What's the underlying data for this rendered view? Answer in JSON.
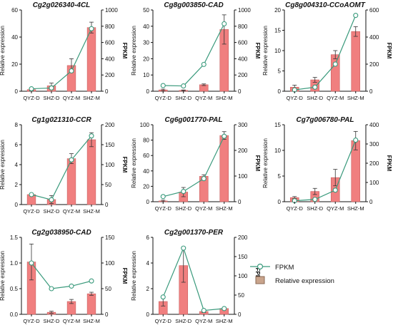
{
  "legend": {
    "line_label": "FPKM",
    "bar_label": "Relative expression",
    "line_color": "#3a9a7c",
    "bar_fill": "#f07f7f",
    "bar_stroke": "#c96060",
    "legend_bar_fill": "#c9a48c"
  },
  "chart_data": [
    {
      "type": "bar+line",
      "title": "Cg2g026340-4CL",
      "categories": [
        "QYZ-D",
        "SHZ-D",
        "QYZ-M",
        "SHZ-M"
      ],
      "ylabel": "Relative expression",
      "y2label": "FPKM",
      "ylim": [
        0,
        60
      ],
      "yticks": [
        0,
        20,
        40,
        60
      ],
      "y2lim": [
        0,
        1000
      ],
      "y2ticks": [
        0,
        200,
        400,
        600,
        800,
        1000
      ],
      "series": [
        {
          "name": "Relative expression",
          "kind": "bar",
          "values": [
            1.2,
            4.0,
            19.0,
            47.0
          ],
          "errors": [
            1.0,
            2.0,
            5.0,
            4.0
          ]
        },
        {
          "name": "FPKM",
          "kind": "line",
          "axis": "right",
          "values": [
            30,
            40,
            250,
            770
          ]
        }
      ]
    },
    {
      "type": "bar+line",
      "title": "Cg8g003850-CAD",
      "categories": [
        "QYZ-D",
        "SHZ-D",
        "QYZ-M",
        "SHZ-M"
      ],
      "ylabel": "Relative expression",
      "y2label": "FPKM",
      "ylim": [
        0,
        50
      ],
      "yticks": [
        0,
        10,
        20,
        30,
        40,
        50
      ],
      "y2lim": [
        0,
        1000
      ],
      "y2ticks": [
        0,
        200,
        400,
        600,
        800,
        1000
      ],
      "series": [
        {
          "name": "Relative expression",
          "kind": "bar",
          "values": [
            0.8,
            0.5,
            4.0,
            38.0
          ],
          "errors": [
            0.5,
            0.3,
            0.5,
            9.0
          ]
        },
        {
          "name": "FPKM",
          "kind": "line",
          "axis": "right",
          "values": [
            70,
            65,
            330,
            830
          ]
        }
      ]
    },
    {
      "type": "bar+line",
      "title": "Cg8g004310-CCoAOMT",
      "categories": [
        "QYZ-D",
        "SHZ-D",
        "QYZ-M",
        "SHZ-M"
      ],
      "ylabel": "Relative expression",
      "y2label": "FPKM",
      "ylim": [
        0,
        20
      ],
      "yticks": [
        0,
        5,
        10,
        15,
        20
      ],
      "y2lim": [
        0,
        600
      ],
      "y2ticks": [
        0,
        200,
        400,
        600
      ],
      "series": [
        {
          "name": "Relative expression",
          "kind": "bar",
          "values": [
            1.0,
            2.8,
            9.0,
            14.7
          ],
          "errors": [
            0.5,
            0.6,
            1.0,
            1.2
          ]
        },
        {
          "name": "FPKM",
          "kind": "line",
          "axis": "right",
          "values": [
            10,
            30,
            200,
            560
          ]
        }
      ]
    },
    {
      "type": "bar+line",
      "title": "Cg1g021310-CCR",
      "categories": [
        "QYZ-D",
        "SHZ-D",
        "QYZ-M",
        "SHZ-M"
      ],
      "ylabel": "Relative expression",
      "y2label": "FPKM",
      "ylim": [
        0,
        8
      ],
      "yticks": [
        0,
        2,
        4,
        6,
        8
      ],
      "y2lim": [
        0,
        200
      ],
      "y2ticks": [
        0,
        50,
        100,
        150,
        200
      ],
      "series": [
        {
          "name": "Relative expression",
          "kind": "bar",
          "values": [
            1.0,
            0.5,
            4.6,
            6.5
          ],
          "errors": [
            0.1,
            0.4,
            0.5,
            0.7
          ]
        },
        {
          "name": "FPKM",
          "kind": "line",
          "axis": "right",
          "values": [
            25,
            12,
            112,
            172
          ]
        }
      ]
    },
    {
      "type": "bar+line",
      "title": "Cg6g001770-PAL",
      "categories": [
        "QYZ-D",
        "SHZ-D",
        "QYZ-M",
        "SHZ-M"
      ],
      "ylabel": "Relative expression",
      "y2label": "FPKM",
      "ylim": [
        0,
        100
      ],
      "yticks": [
        0,
        20,
        40,
        60,
        80,
        100
      ],
      "y2lim": [
        0,
        300
      ],
      "y2ticks": [
        0,
        100,
        200,
        300
      ],
      "series": [
        {
          "name": "Relative expression",
          "kind": "bar",
          "values": [
            1.0,
            12.5,
            33.0,
            86.0
          ],
          "errors": [
            1.0,
            6.0,
            2.0,
            5.0
          ]
        },
        {
          "name": "FPKM",
          "kind": "line",
          "axis": "right",
          "values": [
            20,
            40,
            90,
            255
          ]
        }
      ]
    },
    {
      "type": "bar+line",
      "title": "Cg7g006780-PAL",
      "categories": [
        "QYZ-D",
        "SHZ-D",
        "QYZ-M",
        "SHZ-M"
      ],
      "ylabel": "Relative expression",
      "y2label": "FPKM",
      "ylim": [
        0,
        15
      ],
      "yticks": [
        0,
        5,
        10,
        15
      ],
      "y2lim": [
        0,
        400
      ],
      "y2ticks": [
        0,
        100,
        200,
        300,
        400
      ],
      "series": [
        {
          "name": "Relative expression",
          "kind": "bar",
          "values": [
            0.8,
            2.0,
            4.7,
            11.9
          ],
          "errors": [
            0.2,
            0.6,
            1.6,
            1.8
          ]
        },
        {
          "name": "FPKM",
          "kind": "line",
          "axis": "right",
          "values": [
            5,
            12,
            60,
            320
          ]
        }
      ]
    },
    {
      "type": "bar+line",
      "title": "Cg2g038950-CAD",
      "categories": [
        "QYZ-D",
        "SHZ-D",
        "QYZ-M",
        "SHZ-M"
      ],
      "ylabel": "Relative expression",
      "y2label": "FPKM",
      "ylim": [
        0,
        1.5
      ],
      "yticks": [
        0.0,
        0.5,
        1.0,
        1.5
      ],
      "ytick_labels": [
        "0.0",
        "0.5",
        "1.0",
        "1.5"
      ],
      "y2lim": [
        0,
        150
      ],
      "y2ticks": [
        0,
        50,
        100,
        150
      ],
      "series": [
        {
          "name": "Relative expression",
          "kind": "bar",
          "values": [
            1.02,
            0.04,
            0.25,
            0.4
          ],
          "errors": [
            0.35,
            0.02,
            0.04,
            0.03
          ]
        },
        {
          "name": "FPKM",
          "kind": "line",
          "axis": "right",
          "values": [
            100,
            50,
            55,
            65
          ]
        }
      ]
    },
    {
      "type": "bar+line",
      "title": "Cg2g001370-PER",
      "categories": [
        "QYZ-D",
        "SHZ-D",
        "QYZ-M",
        "SHZ-M"
      ],
      "ylabel": "Relative expression",
      "y2label": "FPKM",
      "ylim": [
        0,
        6
      ],
      "yticks": [
        0,
        2,
        4,
        6
      ],
      "y2lim": [
        0,
        200
      ],
      "y2ticks": [
        0,
        50,
        100,
        150,
        200
      ],
      "series": [
        {
          "name": "Relative expression",
          "kind": "bar",
          "values": [
            1.0,
            3.8,
            0.22,
            0.45
          ],
          "errors": [
            0.35,
            1.3,
            0.08,
            0.06
          ]
        },
        {
          "name": "FPKM",
          "kind": "line",
          "axis": "right",
          "values": [
            45,
            172,
            10,
            15
          ]
        }
      ]
    }
  ]
}
